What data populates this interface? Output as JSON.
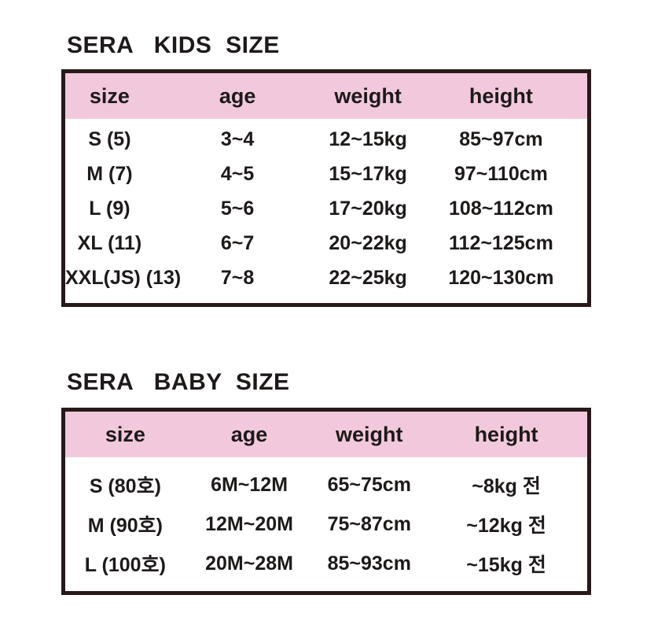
{
  "colors": {
    "header_background": "#f2c9dc",
    "table_border": "#27191a",
    "text": "#1d1a19",
    "page_background": "#ffffff"
  },
  "chart_data": [
    {
      "type": "table",
      "title": "SERA   KIDS  SIZE",
      "columns": [
        "size",
        "age",
        "weight",
        "height"
      ],
      "rows": [
        [
          "S (5)",
          "3~4",
          "12~15kg",
          "85~97cm"
        ],
        [
          "M (7)",
          "4~5",
          "15~17kg",
          "97~110cm"
        ],
        [
          "L (9)",
          "5~6",
          "17~20kg",
          "108~112cm"
        ],
        [
          "XL (11)",
          "6~7",
          "20~22kg",
          "112~125cm"
        ],
        [
          "XXL(JS) (13)",
          "7~8",
          "22~25kg",
          "120~130cm"
        ]
      ],
      "layout_hints": {
        "header_background": "#f2c9dc",
        "gridlines": "none",
        "outer_border": "thick dark"
      }
    },
    {
      "type": "table",
      "title": "SERA   BABY  SIZE",
      "columns": [
        "size",
        "age",
        "weight",
        "height"
      ],
      "rows": [
        [
          "S (80호)",
          "6M~12M",
          "65~75cm",
          "~8kg 전"
        ],
        [
          "M (90호)",
          "12M~20M",
          "75~87cm",
          "~12kg 전"
        ],
        [
          "L (100호)",
          "20M~28M",
          "85~93cm",
          "~15kg 전"
        ]
      ],
      "layout_hints": {
        "header_background": "#f2c9dc",
        "gridlines": "none",
        "outer_border": "thick dark"
      }
    }
  ]
}
